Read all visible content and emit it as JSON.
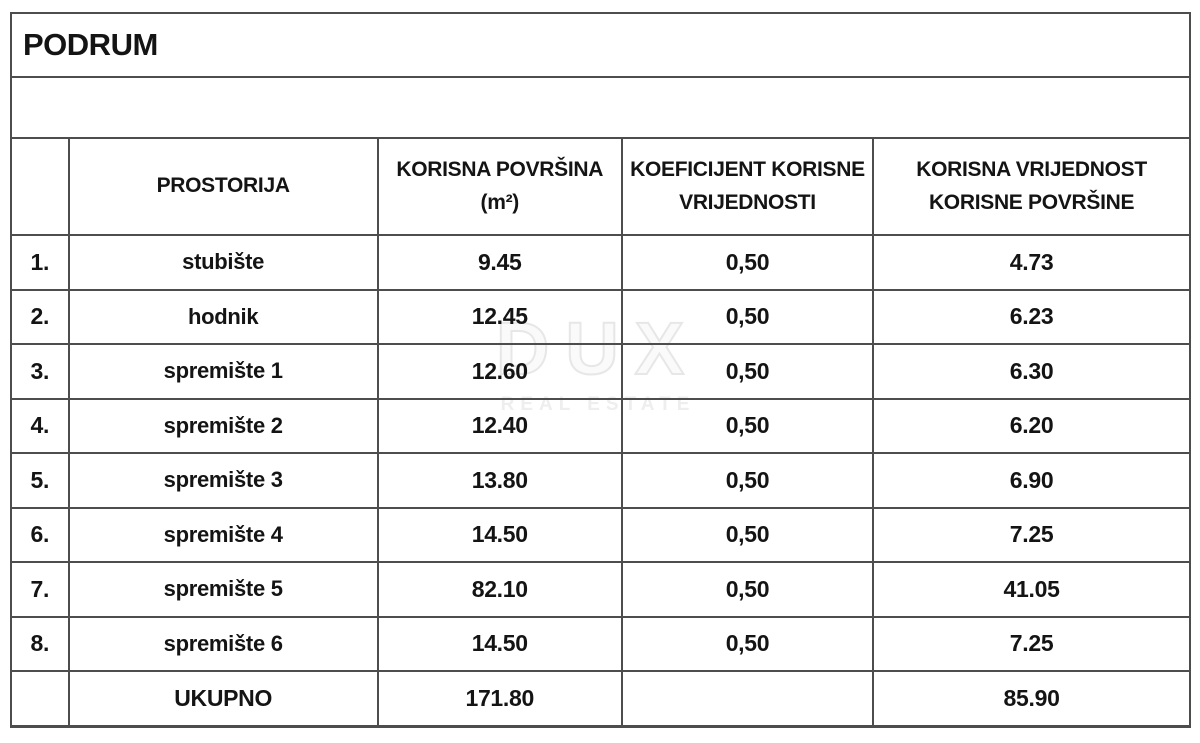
{
  "title": "PODRUM",
  "watermark": {
    "line1": "DUX",
    "line2": "REAL ESTATE"
  },
  "colors": {
    "border": "#4d4d4d",
    "text": "#141414",
    "watermark": "#eeeeee"
  },
  "table": {
    "headers": {
      "num": "",
      "room": "PROSTORIJA",
      "area": "KORISNA POVRŠINA\n(m²)",
      "coef": "KOEFICIJENT KORISNE\nVRIJEDNOSTI",
      "value": "KORISNA VRIJEDNOST\nKORISNE POVRŠINE"
    },
    "rows": [
      {
        "num": "1.",
        "room": "stubište",
        "area": "9.45",
        "coef": "0,50",
        "value": "4.73"
      },
      {
        "num": "2.",
        "room": "hodnik",
        "area": "12.45",
        "coef": "0,50",
        "value": "6.23"
      },
      {
        "num": "3.",
        "room": "spremište 1",
        "area": "12.60",
        "coef": "0,50",
        "value": "6.30"
      },
      {
        "num": "4.",
        "room": "spremište 2",
        "area": "12.40",
        "coef": "0,50",
        "value": "6.20"
      },
      {
        "num": "5.",
        "room": "spremište 3",
        "area": "13.80",
        "coef": "0,50",
        "value": "6.90"
      },
      {
        "num": "6.",
        "room": "spremište 4",
        "area": "14.50",
        "coef": "0,50",
        "value": "7.25"
      },
      {
        "num": "7.",
        "room": "spremište 5",
        "area": "82.10",
        "coef": "0,50",
        "value": "41.05"
      },
      {
        "num": "8.",
        "room": "spremište 6",
        "area": "14.50",
        "coef": "0,50",
        "value": "7.25"
      }
    ],
    "total": {
      "num": "",
      "label": "UKUPNO",
      "area": "171.80",
      "coef": "",
      "value": "85.90"
    }
  }
}
